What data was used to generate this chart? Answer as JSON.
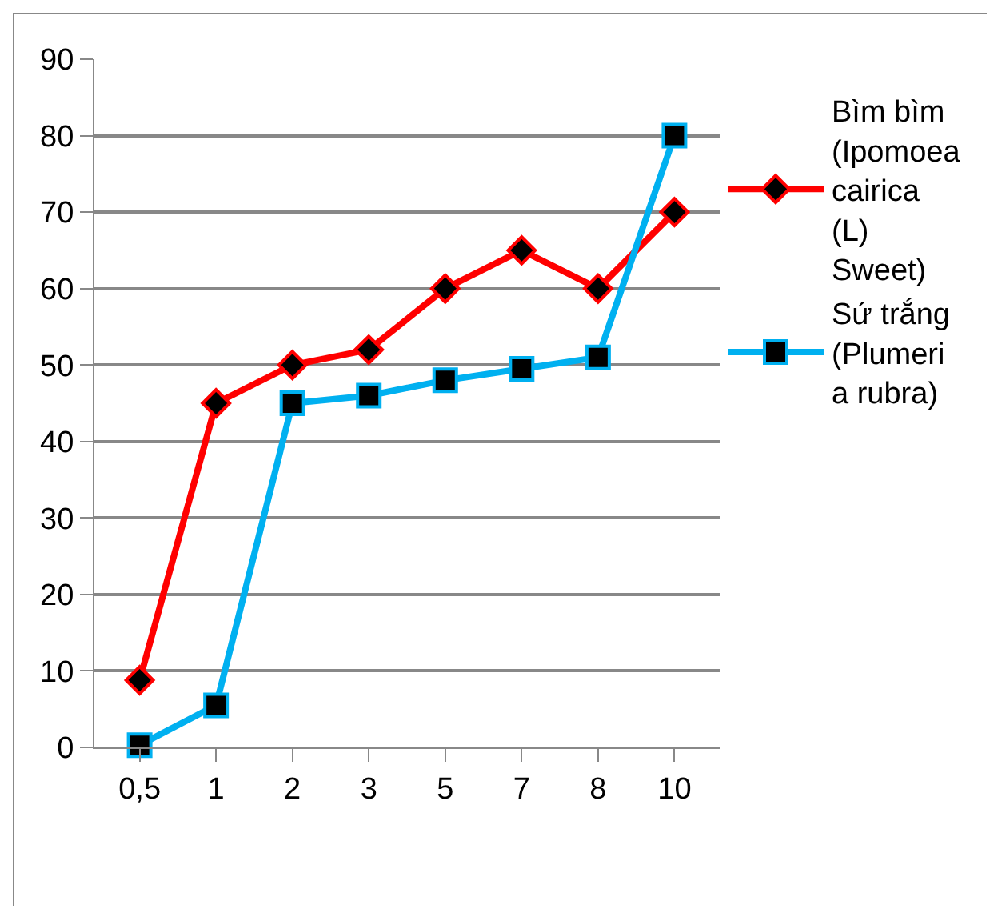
{
  "chart_data": {
    "type": "line",
    "categories": [
      "0,5",
      "1",
      "2",
      "3",
      "5",
      "7",
      "8",
      "10"
    ],
    "series": [
      {
        "name": "Bìm bìm (Ipomoea cairica (L) Sweet)",
        "color": "#ff0000",
        "marker": "diamond",
        "values": [
          8.8,
          45,
          50,
          52,
          60,
          65,
          60,
          70
        ]
      },
      {
        "name": "Sứ trắng (Plumeria rubra)",
        "color": "#00b0f0",
        "marker": "square",
        "values": [
          0.3,
          5.5,
          45,
          46,
          48,
          49.5,
          51,
          80
        ]
      }
    ],
    "ylim": [
      0,
      90
    ],
    "yticks": [
      0,
      10,
      20,
      30,
      40,
      50,
      60,
      70,
      80,
      90
    ],
    "grid": "y",
    "legend": "right"
  }
}
